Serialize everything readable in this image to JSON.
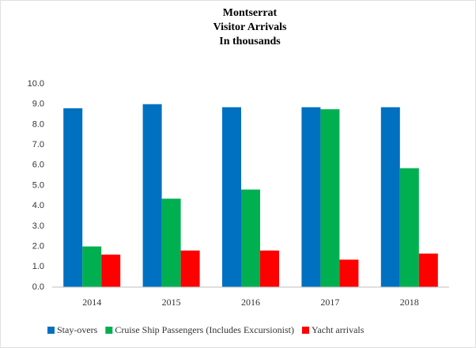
{
  "chart_data": {
    "type": "bar",
    "title": [
      "Montserrat",
      "Visitor Arrivals",
      "In thousands"
    ],
    "categories": [
      "2014",
      "2015",
      "2016",
      "2017",
      "2018"
    ],
    "series": [
      {
        "name": "Stay-overs",
        "color": "#0070c0",
        "values": [
          8.8,
          9.0,
          8.85,
          8.85,
          8.85
        ]
      },
      {
        "name": "Cruise Ship Passengers (Includes Excursionist)",
        "color": "#00b050",
        "values": [
          2.0,
          4.35,
          4.8,
          8.75,
          5.85
        ]
      },
      {
        "name": "Yacht arrivals",
        "color": "#ff0000",
        "values": [
          1.6,
          1.8,
          1.8,
          1.35,
          1.65
        ]
      }
    ],
    "ylim": [
      0,
      10
    ],
    "yticks": [
      {
        "value": 0,
        "label": "0.0"
      },
      {
        "value": 1,
        "label": "1.0"
      },
      {
        "value": 2,
        "label": "2.0"
      },
      {
        "value": 3,
        "label": "3.0"
      },
      {
        "value": 4,
        "label": "4.0"
      },
      {
        "value": 5,
        "label": "5.0"
      },
      {
        "value": 6,
        "label": "6.0"
      },
      {
        "value": 7,
        "label": "7.0"
      },
      {
        "value": 8,
        "label": "8.0"
      },
      {
        "value": 9,
        "label": "9.0"
      },
      {
        "value": 10,
        "label": "10.0"
      }
    ],
    "grid": false,
    "legend": "bottom"
  }
}
